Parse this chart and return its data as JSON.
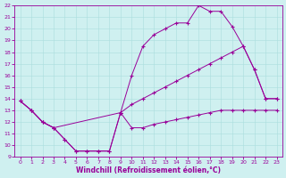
{
  "xlabel": "Windchill (Refroidissement éolien,°C)",
  "bg_color": "#cff0f0",
  "line_color": "#990099",
  "xlim": [
    -0.5,
    23.5
  ],
  "ylim": [
    9,
    22
  ],
  "xticks": [
    0,
    1,
    2,
    3,
    4,
    5,
    6,
    7,
    8,
    9,
    10,
    11,
    12,
    13,
    14,
    15,
    16,
    17,
    18,
    19,
    20,
    21,
    22,
    23
  ],
  "yticks": [
    9,
    10,
    11,
    12,
    13,
    14,
    15,
    16,
    17,
    18,
    19,
    20,
    21,
    22
  ],
  "curve1_x": [
    0,
    1,
    2,
    3,
    4,
    5,
    6,
    7,
    8,
    9,
    10,
    11,
    12,
    13,
    14,
    15,
    16,
    17,
    18,
    19,
    20,
    21,
    22,
    23
  ],
  "curve1_y": [
    13.8,
    13.0,
    12.0,
    11.5,
    10.5,
    9.5,
    9.5,
    9.5,
    9.5,
    12.8,
    16.0,
    18.5,
    19.5,
    20.0,
    20.5,
    20.5,
    22.0,
    21.5,
    21.5,
    20.2,
    18.5,
    16.5,
    14.0,
    14.0
  ],
  "curve2_x": [
    0,
    1,
    2,
    3,
    9,
    10,
    11,
    12,
    13,
    14,
    15,
    16,
    17,
    18,
    19,
    20,
    21,
    22,
    23
  ],
  "curve2_y": [
    13.8,
    13.0,
    12.0,
    11.5,
    12.8,
    13.5,
    14.0,
    14.5,
    15.0,
    15.5,
    16.0,
    16.5,
    17.0,
    17.5,
    18.0,
    18.5,
    16.5,
    14.0,
    14.0
  ],
  "curve3_x": [
    0,
    1,
    2,
    3,
    4,
    5,
    6,
    7,
    8,
    9,
    10,
    11,
    12,
    13,
    14,
    15,
    16,
    17,
    18,
    19,
    20,
    21,
    22,
    23
  ],
  "curve3_y": [
    13.8,
    13.0,
    12.0,
    11.5,
    10.5,
    9.5,
    9.5,
    9.5,
    9.5,
    12.8,
    11.5,
    11.5,
    11.8,
    12.0,
    12.2,
    12.4,
    12.6,
    12.8,
    13.0,
    13.0,
    13.0,
    13.0,
    13.0,
    13.0
  ]
}
